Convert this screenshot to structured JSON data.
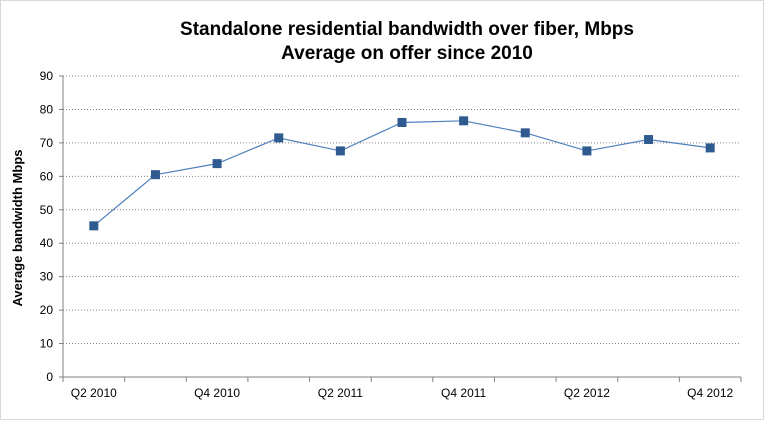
{
  "chart_data": {
    "type": "line",
    "title": "Standalone residential bandwidth over fiber, Mbps",
    "subtitle": "Average on offer since 2010",
    "xlabel": "",
    "ylabel": "Average bandwidth Mbps",
    "x": [
      "Q2 2010",
      "Q3 2010",
      "Q4 2010",
      "Q1 2011",
      "Q2 2011",
      "Q3 2011",
      "Q4 2011",
      "Q1 2012",
      "Q2 2012",
      "Q3 2012",
      "Q4 2012"
    ],
    "x_tick_labels": [
      "Q2 2010",
      "",
      "Q4 2010",
      "",
      "Q2 2011",
      "",
      "Q4 2011",
      "",
      "Q2 2012",
      "",
      "Q4 2012"
    ],
    "series": [
      {
        "values": [
          45.2,
          60.5,
          63.8,
          71.5,
          67.6,
          76.1,
          76.6,
          73.0,
          67.6,
          71.0,
          68.5
        ]
      }
    ],
    "ylim": [
      0,
      90
    ],
    "yticks": [
      0,
      10,
      20,
      30,
      40,
      50,
      60,
      70,
      80,
      90
    ],
    "grid": true,
    "legend": "none",
    "colors": {
      "line": "#4f81bd",
      "marker": "#2e5a8f",
      "grid": "#808080",
      "axis": "#808080"
    }
  }
}
